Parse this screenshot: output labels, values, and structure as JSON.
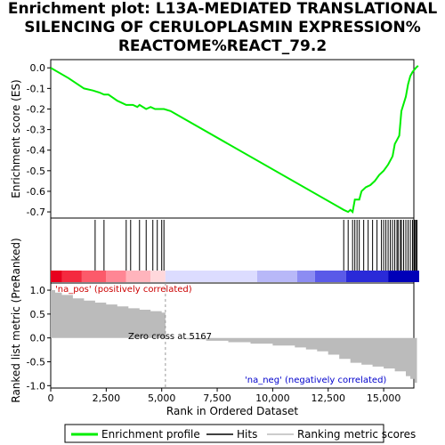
{
  "title_lines": [
    "Enrichment plot: L13A-MEDIATED TRANSLATIONAL",
    "SILENCING OF CERULOPLASMIN EXPRESSION%",
    "REACTOME%REACT_79.2"
  ],
  "chart_data": {
    "type": "line",
    "es_panel": {
      "ylabel": "Enrichment score (ES)",
      "ylim": [
        -0.73,
        0.04
      ],
      "yticks": [
        0.0,
        -0.1,
        -0.2,
        -0.3,
        -0.4,
        -0.5,
        -0.6,
        -0.7
      ],
      "ytick_labels": [
        "0.0",
        "-0.1",
        "-0.2",
        "-0.3",
        "-0.4",
        "-0.5",
        "-0.6",
        "-0.7"
      ],
      "series_name": "Enrichment profile",
      "color": "#00ee00",
      "x": [
        0,
        800,
        1500,
        1900,
        2200,
        2400,
        2600,
        3000,
        3400,
        3700,
        3900,
        4000,
        4300,
        4500,
        4700,
        4900,
        5100,
        5400,
        13200,
        13400,
        13500,
        13600,
        13700,
        13900,
        14000,
        14200,
        14400,
        14600,
        14800,
        15000,
        15200,
        15400,
        15500,
        15600,
        15700,
        15800,
        16000,
        16100,
        16200,
        16300,
        16450,
        16550
      ],
      "y": [
        0.0,
        -0.05,
        -0.1,
        -0.11,
        -0.12,
        -0.13,
        -0.13,
        -0.16,
        -0.18,
        -0.18,
        -0.19,
        -0.18,
        -0.2,
        -0.19,
        -0.2,
        -0.2,
        -0.2,
        -0.21,
        -0.69,
        -0.7,
        -0.69,
        -0.7,
        -0.64,
        -0.64,
        -0.6,
        -0.58,
        -0.57,
        -0.55,
        -0.52,
        -0.5,
        -0.47,
        -0.43,
        -0.37,
        -0.35,
        -0.33,
        -0.21,
        -0.14,
        -0.08,
        -0.04,
        -0.02,
        0.0,
        0.01
      ]
    },
    "hits": [
      2000,
      2400,
      3400,
      3600,
      4000,
      4300,
      4600,
      4800,
      5000,
      5100,
      13200,
      13400,
      13600,
      13700,
      13800,
      13900,
      14100,
      14300,
      14500,
      14700,
      14900,
      15000,
      15100,
      15200,
      15300,
      15400,
      15500,
      15600,
      15650,
      15750,
      15800,
      15900,
      16000,
      16100,
      16200,
      16300,
      16400,
      16450,
      16500
    ],
    "metric_panel": {
      "ylabel": "Ranked list metric (PreRanked)",
      "ylim": [
        -1.05,
        1.15
      ],
      "yticks": [
        1.0,
        0.5,
        0.0,
        -0.5,
        -1.0
      ],
      "ytick_labels": [
        "1.0",
        "0.5",
        "0.0",
        "-0.5",
        "-1.0"
      ],
      "x": [
        0,
        200,
        500,
        1000,
        1500,
        2000,
        2500,
        3000,
        3500,
        4000,
        4500,
        5000,
        5167,
        6000,
        7000,
        8000,
        9000,
        10000,
        11000,
        11500,
        12000,
        12500,
        13000,
        13500,
        14000,
        14500,
        15000,
        15500,
        16000,
        16200,
        16400,
        16500
      ],
      "y": [
        1.0,
        0.95,
        0.9,
        0.83,
        0.78,
        0.74,
        0.7,
        0.66,
        0.62,
        0.59,
        0.56,
        0.53,
        0.0,
        -0.03,
        -0.06,
        -0.09,
        -0.12,
        -0.16,
        -0.2,
        -0.24,
        -0.28,
        -0.35,
        -0.44,
        -0.52,
        -0.56,
        -0.6,
        -0.64,
        -0.7,
        -0.8,
        -0.86,
        -0.94,
        -1.0
      ],
      "zero_cross_label": "Zero cross at 5167",
      "zero_cross_x": 5167,
      "pos_label": "'na_pos' (positively correlated)",
      "neg_label": "'na_neg' (negatively correlated)"
    },
    "xlabel": "Rank in Ordered Dataset",
    "xlim": [
      0,
      16600
    ],
    "xticks": [
      0,
      2500,
      5000,
      7500,
      10000,
      12500,
      15000
    ],
    "xtick_labels": [
      "0",
      "2,500",
      "5,000",
      "7,500",
      "10,000",
      "12,500",
      "15,000"
    ],
    "color_bar": [
      {
        "from": 0,
        "to": 500,
        "color": "#e8001e"
      },
      {
        "from": 500,
        "to": 1400,
        "color": "#f42a3f"
      },
      {
        "from": 1400,
        "to": 2500,
        "color": "#fc5a6a"
      },
      {
        "from": 2500,
        "to": 3400,
        "color": "#ff8694"
      },
      {
        "from": 3400,
        "to": 4500,
        "color": "#ffb4bc"
      },
      {
        "from": 4500,
        "to": 5167,
        "color": "#ffd8dc"
      },
      {
        "from": 5167,
        "to": 9300,
        "color": "#dcdcff"
      },
      {
        "from": 9300,
        "to": 11100,
        "color": "#b8b8f8"
      },
      {
        "from": 11100,
        "to": 11900,
        "color": "#8c8cf2"
      },
      {
        "from": 11900,
        "to": 13300,
        "color": "#5a5ae8"
      },
      {
        "from": 13300,
        "to": 15200,
        "color": "#2a2ad8"
      },
      {
        "from": 15200,
        "to": 16600,
        "color": "#0000b8"
      }
    ],
    "legend": [
      {
        "label": "Enrichment profile",
        "color": "#00ee00",
        "kind": "line"
      },
      {
        "label": "Hits",
        "color": "#000000",
        "kind": "line"
      },
      {
        "label": "Ranking metric scores",
        "color": "#bbbbbb",
        "kind": "line"
      }
    ],
    "legend_placement": "bottom",
    "grid": false
  }
}
